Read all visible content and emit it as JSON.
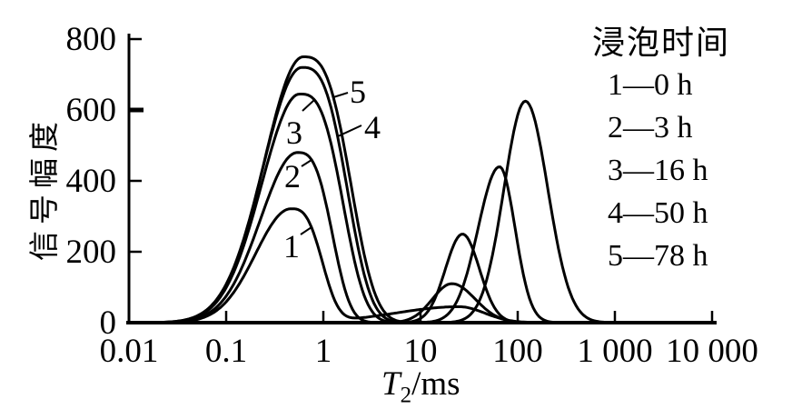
{
  "figure": {
    "background": "#ffffff",
    "ink": "#000000"
  },
  "chart_data": {
    "type": "line",
    "title": "",
    "xlabel": "T2/ms",
    "xlabel_parts": {
      "variable": "T",
      "subscript": "2",
      "unit": "/ms"
    },
    "ylabel": "信号幅度",
    "x_scale": "log10",
    "xlim": [
      0.01,
      10000
    ],
    "ylim": [
      0,
      800
    ],
    "grid": false,
    "x_ticks": [
      {
        "value": 0.01,
        "label": "0.01"
      },
      {
        "value": 0.1,
        "label": "0.1"
      },
      {
        "value": 1,
        "label": "1"
      },
      {
        "value": 10,
        "label": "10"
      },
      {
        "value": 100,
        "label": "100"
      },
      {
        "value": 1000,
        "label": "1 000"
      },
      {
        "value": 10000,
        "label": "10 000"
      }
    ],
    "y_ticks": [
      {
        "value": 0,
        "label": "0"
      },
      {
        "value": 200,
        "label": "200"
      },
      {
        "value": 400,
        "label": "400"
      },
      {
        "value": 600,
        "label": "600"
      },
      {
        "value": 800,
        "label": "800"
      }
    ],
    "legend": {
      "position": "top-right",
      "title": "浸泡时间",
      "items": [
        {
          "curve": "1",
          "label": "1—0 h",
          "soak_time_h": 0
        },
        {
          "curve": "2",
          "label": "2—3 h",
          "soak_time_h": 3
        },
        {
          "curve": "3",
          "label": "3—16 h",
          "soak_time_h": 16
        },
        {
          "curve": "4",
          "label": "4—50 h",
          "soak_time_h": 50
        },
        {
          "curve": "5",
          "label": "5—78 h",
          "soak_time_h": 78
        }
      ]
    },
    "series": [
      {
        "name": "curve-1",
        "soak_time_h": 0,
        "peaks": [
          {
            "center_ms": 0.46,
            "amplitude": 320,
            "w_left": 0.36,
            "p_left": 2,
            "w_right": 0.3,
            "p_right": 3
          },
          {
            "center_ms": 25,
            "amplitude": 45,
            "w_left": 0.65,
            "p_left": 2,
            "w_right": 0.26,
            "p_right": 2
          }
        ],
        "annotation": {
          "text": "1",
          "x": 321,
          "y": 283,
          "leader": [
            331,
            258,
            343,
            250
          ]
        }
      },
      {
        "name": "curve-2",
        "soak_time_h": 3,
        "peaks": [
          {
            "center_ms": 0.54,
            "amplitude": 480,
            "w_left": 0.38,
            "p_left": 2,
            "w_right": 0.33,
            "p_right": 3
          },
          {
            "center_ms": 21,
            "amplitude": 110,
            "w_left": 0.2,
            "p_left": 2,
            "w_right": 0.24,
            "p_right": 2
          }
        ],
        "annotation": {
          "text": "2",
          "x": 322,
          "y": 206,
          "leader": [
            332,
            183,
            343,
            176
          ]
        }
      },
      {
        "name": "curve-3",
        "soak_time_h": 16,
        "peaks": [
          {
            "center_ms": 0.57,
            "amplitude": 645,
            "w_left": 0.39,
            "p_left": 2,
            "w_right": 0.41,
            "p_right": 3
          },
          {
            "center_ms": 27,
            "amplitude": 250,
            "w_left": 0.175,
            "p_left": 2,
            "w_right": 0.175,
            "p_right": 2
          }
        ],
        "annotation": {
          "text": "3",
          "x": 324,
          "y": 158,
          "leader": [
            333,
            122,
            346,
            110
          ]
        }
      },
      {
        "name": "curve-4",
        "soak_time_h": 50,
        "peaks": [
          {
            "center_ms": 0.6,
            "amplitude": 720,
            "w_left": 0.4,
            "p_left": 2,
            "w_right": 0.43,
            "p_right": 3
          },
          {
            "center_ms": 65,
            "amplitude": 440,
            "w_left": 0.22,
            "p_left": 2,
            "w_right": 0.16,
            "p_right": 2
          }
        ],
        "annotation": {
          "text": "4",
          "x": 410,
          "y": 152,
          "leader": [
            398,
            138,
            372,
            150
          ]
        }
      },
      {
        "name": "curve-5",
        "soak_time_h": 78,
        "peaks": [
          {
            "center_ms": 0.62,
            "amplitude": 750,
            "w_left": 0.4,
            "p_left": 2,
            "w_right": 0.45,
            "p_right": 3
          },
          {
            "center_ms": 120,
            "amplitude": 625,
            "w_left": 0.22,
            "p_left": 2,
            "w_right": 0.23,
            "p_right": 2
          }
        ],
        "annotation": {
          "text": "5",
          "x": 394,
          "y": 113,
          "leader": [
            383,
            102,
            367,
            107
          ]
        }
      }
    ]
  }
}
